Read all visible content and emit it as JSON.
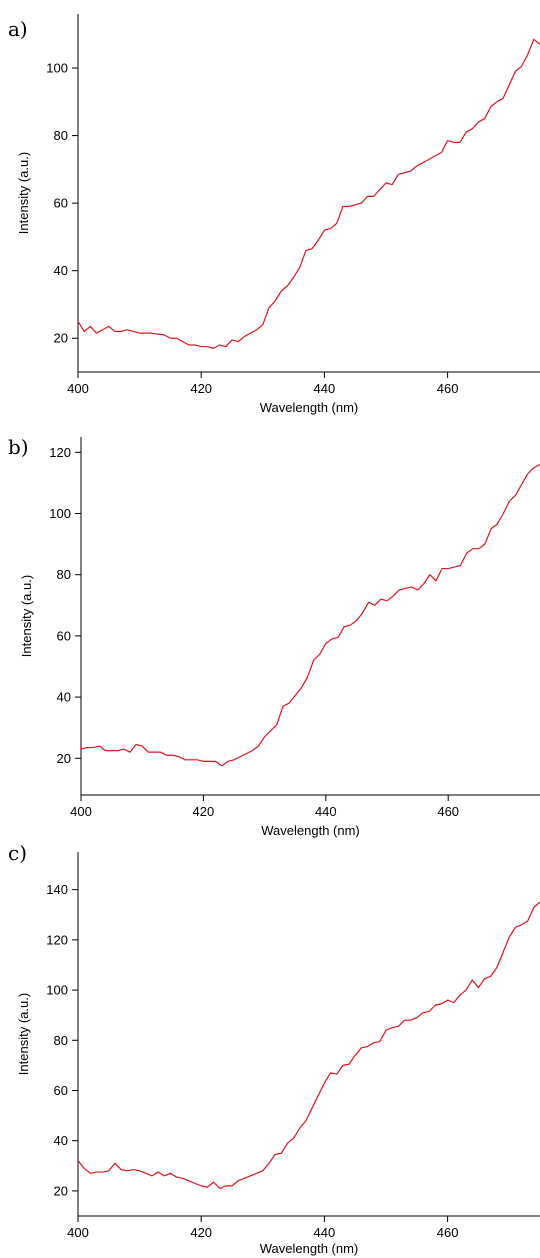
{
  "chart_data": [
    {
      "type": "line",
      "panel_label": "a)",
      "xlabel": "Wavelength (nm)",
      "ylabel": "Intensity (a.u.)",
      "xlim": [
        400,
        475
      ],
      "ylim": [
        10,
        116
      ],
      "xticks": [
        400,
        420,
        440,
        460
      ],
      "yticks": [
        20,
        40,
        60,
        80,
        100
      ],
      "line_color": "#e0141e",
      "series": [
        {
          "x": [
            400,
            401,
            402,
            403,
            404,
            405,
            406,
            407,
            408,
            409,
            410,
            411,
            412,
            413,
            414,
            415,
            416,
            417,
            418,
            419,
            420,
            421,
            422,
            423,
            424,
            425,
            426,
            427,
            428,
            429,
            430,
            431,
            432,
            433,
            434,
            435,
            436,
            437,
            438,
            439,
            440,
            441,
            442,
            443,
            444,
            445,
            446,
            447,
            448,
            449,
            450,
            451,
            452,
            453,
            454,
            455,
            456,
            457,
            458,
            459,
            460,
            461,
            462,
            463,
            464,
            465,
            466,
            467,
            468,
            469,
            470,
            471,
            472,
            473,
            474,
            475
          ],
          "y": [
            25,
            22,
            23.5,
            21.5,
            22.5,
            23.5,
            22,
            22,
            22.5,
            22,
            21.5,
            21.5,
            21.5,
            21.2,
            21,
            20,
            20,
            19,
            18,
            18,
            17.5,
            17.5,
            17,
            18,
            17.5,
            19.5,
            19,
            20.5,
            21.5,
            22.5,
            24,
            29,
            31,
            34,
            35.5,
            38,
            41,
            46,
            46.5,
            49,
            52,
            52.5,
            54,
            59,
            59,
            59.5,
            60,
            62,
            62,
            64,
            66,
            65.5,
            68.5,
            69,
            69.5,
            71,
            72,
            73,
            74,
            75,
            78.5,
            78,
            78,
            81,
            82,
            84,
            85,
            88.5,
            90,
            91,
            95,
            99,
            100.5,
            104,
            108.5,
            107
          ]
        }
      ]
    },
    {
      "type": "line",
      "panel_label": "b)",
      "xlabel": "Wavelength (nm)",
      "ylabel": "Intensity (a.u.)",
      "xlim": [
        400,
        475
      ],
      "ylim": [
        8,
        125
      ],
      "xticks": [
        400,
        420,
        440,
        460
      ],
      "yticks": [
        20,
        40,
        60,
        80,
        100,
        120
      ],
      "line_color": "#e0141e",
      "series": [
        {
          "x": [
            400,
            401,
            402,
            403,
            404,
            405,
            406,
            407,
            408,
            409,
            410,
            411,
            412,
            413,
            414,
            415,
            416,
            417,
            418,
            419,
            420,
            421,
            422,
            423,
            424,
            425,
            426,
            427,
            428,
            429,
            430,
            431,
            432,
            433,
            434,
            435,
            436,
            437,
            438,
            439,
            440,
            441,
            442,
            443,
            444,
            445,
            446,
            447,
            448,
            449,
            450,
            451,
            452,
            453,
            454,
            455,
            456,
            457,
            458,
            459,
            460,
            461,
            462,
            463,
            464,
            465,
            466,
            467,
            468,
            469,
            470,
            471,
            472,
            473,
            474,
            475
          ],
          "y": [
            23,
            23.5,
            23.5,
            24,
            22.5,
            22.5,
            22.5,
            23,
            22,
            24.5,
            24,
            22,
            22,
            22,
            21,
            21,
            20.5,
            19.5,
            19.5,
            19.5,
            19,
            19,
            19,
            17.5,
            19,
            19.5,
            20.5,
            21.5,
            22.5,
            24,
            27,
            29,
            31,
            37,
            38,
            40.5,
            43,
            46.5,
            52,
            54,
            57.5,
            59,
            59.5,
            63,
            63.5,
            65,
            67.5,
            71,
            70,
            72,
            71.5,
            73,
            75,
            75.5,
            76,
            75,
            77,
            80,
            78,
            82,
            82,
            82.5,
            83,
            87,
            88.5,
            88.5,
            90,
            95,
            96.5,
            100,
            104,
            106,
            109.5,
            113,
            115,
            116
          ]
        }
      ]
    },
    {
      "type": "line",
      "panel_label": "c)",
      "xlabel": "Wavelength (nm)",
      "ylabel": "Intensity (a.u.)",
      "xlim": [
        400,
        475
      ],
      "ylim": [
        10,
        155
      ],
      "xticks": [
        400,
        420,
        440,
        460
      ],
      "yticks": [
        20,
        40,
        60,
        80,
        100,
        120,
        140
      ],
      "line_color": "#e0141e",
      "series": [
        {
          "x": [
            400,
            401,
            402,
            403,
            404,
            405,
            406,
            407,
            408,
            409,
            410,
            411,
            412,
            413,
            414,
            415,
            416,
            417,
            418,
            419,
            420,
            421,
            422,
            423,
            424,
            425,
            426,
            427,
            428,
            429,
            430,
            431,
            432,
            433,
            434,
            435,
            436,
            437,
            438,
            439,
            440,
            441,
            442,
            443,
            444,
            445,
            446,
            447,
            448,
            449,
            450,
            451,
            452,
            453,
            454,
            455,
            456,
            457,
            458,
            459,
            460,
            461,
            462,
            463,
            464,
            465,
            466,
            467,
            468,
            469,
            470,
            471,
            472,
            473,
            474,
            475
          ],
          "y": [
            32,
            29,
            27,
            27.5,
            27.5,
            28,
            31,
            28.5,
            28,
            28.5,
            28,
            27,
            26,
            27.5,
            26,
            27,
            25.5,
            25,
            24,
            23,
            22,
            21.5,
            23.5,
            21,
            22,
            22,
            24,
            25,
            26,
            27,
            28,
            31,
            34.5,
            35,
            39,
            41,
            45,
            48,
            53,
            58,
            63,
            67,
            66.5,
            70,
            70.5,
            74,
            77,
            77.5,
            79,
            79.5,
            84,
            85,
            85.5,
            88,
            88,
            89,
            91,
            91.5,
            94,
            94.5,
            96,
            95,
            98,
            100,
            104,
            101,
            104.5,
            105.5,
            109,
            115,
            121,
            125,
            126,
            127.5,
            133,
            135
          ]
        }
      ]
    }
  ]
}
